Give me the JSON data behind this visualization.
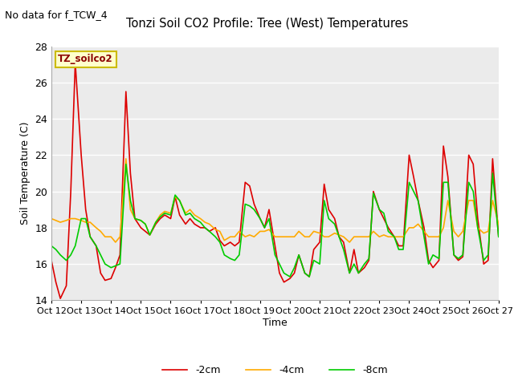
{
  "title": "Tonzi Soil CO2 Profile: Tree (West) Temperatures",
  "no_data_label": "No data for f_TCW_4",
  "sensor_label": "TZ_soilco2",
  "ylabel": "Soil Temperature (C)",
  "xlabel": "Time",
  "ylim": [
    14,
    28
  ],
  "yticks": [
    14,
    16,
    18,
    20,
    22,
    24,
    26,
    28
  ],
  "xtick_labels": [
    "Oct 12",
    "Oct 13",
    "Oct 14",
    "Oct 15",
    "Oct 16",
    "Oct 17",
    "Oct 18",
    "Oct 19",
    "Oct 20",
    "Oct 21",
    "Oct 22",
    "Oct 23",
    "Oct 24",
    "Oct 25",
    "Oct 26",
    "Oct 27"
  ],
  "color_2cm": "#dd0000",
  "color_4cm": "#ffaa00",
  "color_8cm": "#00cc00",
  "legend_labels": [
    "-2cm",
    "-4cm",
    "-8cm"
  ],
  "bg_color": "#ffffff",
  "plot_bg": "#ebebeb",
  "line_width": 1.2,
  "x_2cm": [
    0,
    0.15,
    0.3,
    0.5,
    0.65,
    0.8,
    1.0,
    1.15,
    1.3,
    1.5,
    1.65,
    1.8,
    2.0,
    2.15,
    2.3,
    2.5,
    2.65,
    2.8,
    3.0,
    3.15,
    3.3,
    3.5,
    3.65,
    3.8,
    4.0,
    4.15,
    4.3,
    4.5,
    4.65,
    4.8,
    5.0,
    5.15,
    5.3,
    5.5,
    5.65,
    5.8,
    6.0,
    6.15,
    6.3,
    6.5,
    6.65,
    6.8,
    7.0,
    7.15,
    7.3,
    7.5,
    7.65,
    7.8,
    8.0,
    8.15,
    8.3,
    8.5,
    8.65,
    8.8,
    9.0,
    9.15,
    9.3,
    9.5,
    9.65,
    9.8,
    10.0,
    10.15,
    10.3,
    10.5,
    10.65,
    10.8,
    11.0,
    11.15,
    11.3,
    11.5,
    11.65,
    11.8,
    12.0,
    12.15,
    12.3,
    12.5,
    12.65,
    12.8,
    13.0,
    13.15,
    13.3,
    13.5,
    13.65,
    13.8,
    14.0,
    14.15,
    14.3,
    14.5,
    14.65,
    14.8,
    15.0
  ],
  "y_2cm": [
    16.2,
    15.0,
    14.1,
    14.8,
    20.0,
    27.1,
    22.0,
    19.0,
    17.5,
    17.0,
    15.5,
    15.1,
    15.2,
    15.8,
    16.5,
    25.5,
    21.0,
    18.5,
    18.0,
    17.8,
    17.6,
    18.2,
    18.5,
    18.7,
    18.5,
    19.7,
    18.7,
    18.2,
    18.5,
    18.2,
    18.0,
    18.0,
    17.8,
    18.0,
    17.3,
    17.0,
    17.2,
    17.0,
    17.2,
    20.5,
    20.3,
    19.3,
    18.5,
    18.0,
    19.0,
    17.0,
    15.5,
    15.0,
    15.2,
    15.5,
    16.5,
    15.5,
    15.3,
    16.8,
    17.2,
    20.4,
    19.0,
    18.5,
    17.5,
    17.2,
    15.5,
    16.8,
    15.5,
    15.8,
    16.2,
    20.0,
    19.0,
    18.5,
    18.0,
    17.5,
    17.0,
    17.0,
    22.0,
    20.8,
    19.5,
    18.0,
    16.2,
    15.8,
    16.2,
    22.5,
    20.8,
    16.5,
    16.2,
    16.4,
    22.0,
    21.5,
    18.5,
    16.0,
    16.2,
    21.8,
    17.5
  ],
  "y_4cm": [
    18.5,
    18.4,
    18.3,
    18.4,
    18.5,
    18.5,
    18.4,
    18.3,
    18.3,
    18.0,
    17.8,
    17.5,
    17.5,
    17.2,
    17.5,
    21.8,
    19.0,
    18.5,
    18.4,
    18.2,
    17.6,
    18.3,
    18.7,
    18.9,
    18.8,
    19.7,
    19.5,
    18.8,
    19.0,
    18.7,
    18.5,
    18.3,
    18.2,
    17.9,
    17.8,
    17.3,
    17.5,
    17.5,
    17.8,
    17.5,
    17.6,
    17.5,
    17.8,
    17.8,
    17.9,
    17.5,
    17.5,
    17.5,
    17.5,
    17.5,
    17.8,
    17.5,
    17.5,
    17.8,
    17.7,
    17.5,
    17.5,
    17.7,
    17.6,
    17.5,
    17.2,
    17.5,
    17.5,
    17.5,
    17.5,
    17.8,
    17.5,
    17.6,
    17.5,
    17.5,
    17.5,
    17.5,
    18.0,
    18.0,
    18.2,
    17.8,
    17.5,
    17.5,
    17.5,
    18.0,
    19.5,
    17.8,
    17.5,
    17.8,
    19.5,
    19.5,
    18.0,
    17.7,
    17.8,
    19.5,
    18.2
  ],
  "y_8cm": [
    17.0,
    16.8,
    16.5,
    16.2,
    16.5,
    17.0,
    18.5,
    18.5,
    17.5,
    17.0,
    16.5,
    16.0,
    15.8,
    15.9,
    16.0,
    21.5,
    19.5,
    18.5,
    18.4,
    18.2,
    17.6,
    18.3,
    18.6,
    18.8,
    18.7,
    19.8,
    19.5,
    18.7,
    18.8,
    18.5,
    18.3,
    18.0,
    17.8,
    17.5,
    17.2,
    16.5,
    16.3,
    16.2,
    16.5,
    19.3,
    19.2,
    19.0,
    18.5,
    18.0,
    18.5,
    16.5,
    16.0,
    15.5,
    15.3,
    15.8,
    16.5,
    15.5,
    15.3,
    16.2,
    16.0,
    19.5,
    18.5,
    18.2,
    17.5,
    16.8,
    15.5,
    16.0,
    15.5,
    16.0,
    16.3,
    19.9,
    19.0,
    18.8,
    17.8,
    17.5,
    16.8,
    16.8,
    20.5,
    20.0,
    19.5,
    17.5,
    16.0,
    16.5,
    16.3,
    20.5,
    20.5,
    16.5,
    16.3,
    16.5,
    20.5,
    20.0,
    18.0,
    16.2,
    16.5,
    21.0,
    17.5
  ]
}
